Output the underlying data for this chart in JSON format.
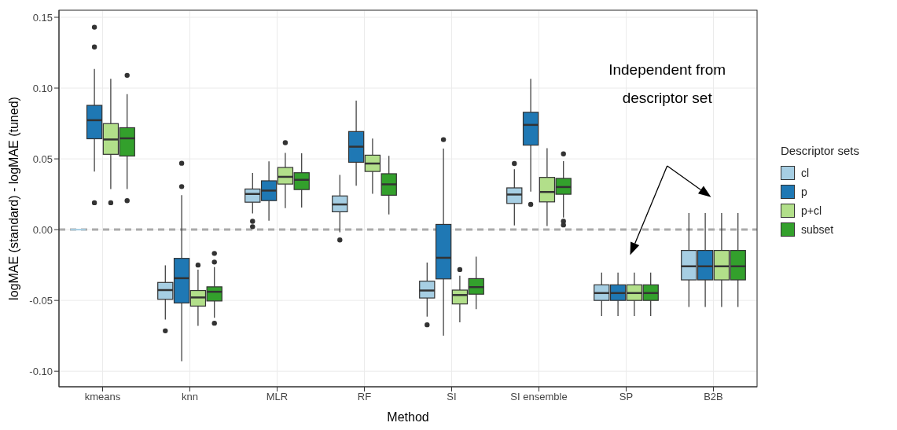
{
  "chart_data": {
    "type": "box",
    "xlabel": "Method",
    "ylabel": "logMAE (standard) - logMAE (tuned)",
    "legend_title": "Descriptor sets",
    "legend": "right",
    "grid": true,
    "categories": [
      "kmeans",
      "knn",
      "MLR",
      "RF",
      "SI",
      "SI ensemble",
      "SP",
      "B2B"
    ],
    "ylim": [
      -0.111,
      0.155
    ],
    "yticks": [
      {
        "value": -0.1,
        "label": "-0.10"
      },
      {
        "value": -0.05,
        "label": "-0.05"
      },
      {
        "value": 0,
        "label": "0.00"
      },
      {
        "value": 0.05,
        "label": "0.05"
      },
      {
        "value": 0.1,
        "label": "0.10"
      },
      {
        "value": 0.15,
        "label": "0.15"
      }
    ],
    "ref_lines": [
      {
        "axis": "y",
        "value": 0,
        "label": null,
        "color": "#aaaaaa",
        "line_style": "dashed"
      }
    ],
    "annotations": [
      "Independent from\ndescriptor set"
    ],
    "series": [
      {
        "name": "cl",
        "color": "#a6cee3",
        "boxes": [
          {
            "low": 0,
            "q1": 0,
            "median": 0,
            "q3": 0,
            "high": 0
          },
          {
            "low": -0.0635,
            "q1": -0.0492,
            "median": -0.0427,
            "q3": -0.0373,
            "high": -0.0252,
            "outliers": [
              -0.0715
            ]
          },
          {
            "low": 0.0115,
            "q1": 0.0194,
            "median": 0.0252,
            "q3": 0.0287,
            "high": 0.04,
            "outliers": [
              0.0059,
              0.0021
            ]
          },
          {
            "low": -0.0019,
            "q1": 0.0126,
            "median": 0.0178,
            "q3": 0.0238,
            "high": 0.0387,
            "outliers": [
              -0.0073
            ]
          },
          {
            "low": -0.0615,
            "q1": -0.0483,
            "median": -0.043,
            "q3": -0.0364,
            "high": -0.0232,
            "outliers": [
              -0.0672
            ]
          },
          {
            "low": 0.003,
            "q1": 0.0185,
            "median": 0.0248,
            "q3": 0.0295,
            "high": 0.0427,
            "outliers": [
              0.0467
            ]
          },
          {
            "low": -0.061,
            "q1": -0.05,
            "median": -0.0448,
            "q3": -0.039,
            "high": -0.0303
          },
          {
            "low": -0.0547,
            "q1": -0.0355,
            "median": -0.0259,
            "q3": -0.0147,
            "high": 0.0117
          }
        ]
      },
      {
        "name": "p",
        "color": "#1f78b4",
        "boxes": [
          {
            "low": 0.041,
            "q1": 0.0642,
            "median": 0.0773,
            "q3": 0.0878,
            "high": 0.1135,
            "outliers": [
              0.143,
              0.129,
              0.019
            ]
          },
          {
            "low": -0.093,
            "q1": -0.0518,
            "median": -0.0343,
            "q3": -0.0203,
            "high": 0.0243,
            "outliers": [
              0.0469,
              0.0304
            ]
          },
          {
            "low": 0.0063,
            "q1": 0.0205,
            "median": 0.0276,
            "q3": 0.0345,
            "high": 0.0483
          },
          {
            "low": 0.031,
            "q1": 0.0476,
            "median": 0.0586,
            "q3": 0.0693,
            "high": 0.0911
          },
          {
            "low": -0.0749,
            "q1": -0.0348,
            "median": -0.0199,
            "q3": 0.0037,
            "high": 0.0573,
            "outliers": [
              0.0636
            ]
          },
          {
            "low": 0.0269,
            "q1": 0.0597,
            "median": 0.074,
            "q3": 0.0829,
            "high": 0.1065,
            "outliers": [
              0.0178
            ]
          },
          {
            "low": -0.061,
            "q1": -0.05,
            "median": -0.0448,
            "q3": -0.039,
            "high": -0.0303
          },
          {
            "low": -0.0547,
            "q1": -0.0355,
            "median": -0.0259,
            "q3": -0.0147,
            "high": 0.0117
          }
        ]
      },
      {
        "name": "p+cl",
        "color": "#b2df8a",
        "boxes": [
          {
            "low": 0.0287,
            "q1": 0.0532,
            "median": 0.0637,
            "q3": 0.0749,
            "high": 0.1065,
            "outliers": [
              0.019
            ]
          },
          {
            "low": -0.068,
            "q1": -0.054,
            "median": -0.0479,
            "q3": -0.043,
            "high": -0.0282,
            "outliers": [
              -0.025
            ]
          },
          {
            "low": 0.0152,
            "q1": 0.0322,
            "median": 0.0373,
            "q3": 0.0439,
            "high": 0.0542,
            "outliers": [
              0.0614
            ]
          },
          {
            "low": 0.0253,
            "q1": 0.0411,
            "median": 0.0467,
            "q3": 0.0526,
            "high": 0.0644
          },
          {
            "low": -0.0654,
            "q1": -0.0525,
            "median": -0.0462,
            "q3": -0.0427,
            "high": -0.0325,
            "outliers": [
              -0.0282
            ]
          },
          {
            "low": 0.0025,
            "q1": 0.0196,
            "median": 0.0266,
            "q3": 0.0369,
            "high": 0.0576
          },
          {
            "low": -0.061,
            "q1": -0.05,
            "median": -0.0448,
            "q3": -0.039,
            "high": -0.0303
          },
          {
            "low": -0.0547,
            "q1": -0.0355,
            "median": -0.0259,
            "q3": -0.0147,
            "high": 0.0117
          }
        ]
      },
      {
        "name": "subset",
        "color": "#33a02c",
        "boxes": [
          {
            "low": 0.0287,
            "q1": 0.052,
            "median": 0.0645,
            "q3": 0.072,
            "high": 0.0957,
            "outliers": [
              0.109,
              0.0205
            ]
          },
          {
            "low": -0.0623,
            "q1": -0.0504,
            "median": -0.0439,
            "q3": -0.0404,
            "high": -0.0264,
            "outliers": [
              -0.0168,
              -0.0229,
              -0.0661
            ]
          },
          {
            "low": 0.0156,
            "q1": 0.0283,
            "median": 0.0352,
            "q3": 0.0402,
            "high": 0.0539
          },
          {
            "low": 0.0107,
            "q1": 0.0243,
            "median": 0.032,
            "q3": 0.0395,
            "high": 0.0521
          },
          {
            "low": -0.0561,
            "q1": -0.0456,
            "median": -0.0406,
            "q3": -0.0346,
            "high": -0.0191
          },
          {
            "low": 0.0086,
            "q1": 0.025,
            "median": 0.0301,
            "q3": 0.0362,
            "high": 0.0484,
            "outliers": [
              0.0535,
              0.0059,
              0.0033
            ]
          },
          {
            "low": -0.061,
            "q1": -0.05,
            "median": -0.0448,
            "q3": -0.039,
            "high": -0.0303
          },
          {
            "low": -0.0547,
            "q1": -0.0355,
            "median": -0.0259,
            "q3": -0.0147,
            "high": 0.0117
          }
        ]
      }
    ]
  }
}
